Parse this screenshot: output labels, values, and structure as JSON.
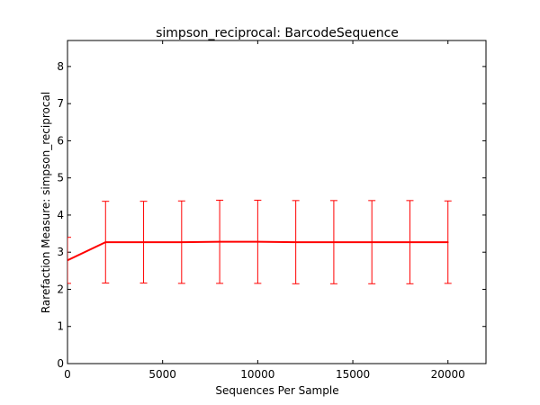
{
  "chart_data": {
    "type": "line",
    "title": "simpson_reciprocal: BarcodeSequence",
    "xlabel": "Sequences Per Sample",
    "ylabel": "Rarefaction Measure: simpson_reciprocal",
    "xlim": [
      0,
      22000
    ],
    "ylim": [
      0,
      8.7
    ],
    "xticks": [
      0,
      5000,
      10000,
      15000,
      20000
    ],
    "xtick_labels": [
      "0",
      "5000",
      "10000",
      "15000",
      "20000"
    ],
    "yticks": [
      0,
      1,
      2,
      3,
      4,
      5,
      6,
      7,
      8
    ],
    "ytick_labels": [
      "0",
      "1",
      "2",
      "3",
      "4",
      "5",
      "6",
      "7",
      "8"
    ],
    "grid": false,
    "series": [
      {
        "color": "#ff0000",
        "x": [
          0,
          2000,
          4000,
          6000,
          8000,
          10000,
          12000,
          14000,
          16000,
          18000,
          20000
        ],
        "y": [
          2.78,
          3.27,
          3.27,
          3.27,
          3.28,
          3.28,
          3.27,
          3.27,
          3.27,
          3.27,
          3.27
        ],
        "err": [
          0.62,
          1.1,
          1.1,
          1.11,
          1.12,
          1.12,
          1.12,
          1.12,
          1.12,
          1.12,
          1.11
        ]
      }
    ]
  }
}
